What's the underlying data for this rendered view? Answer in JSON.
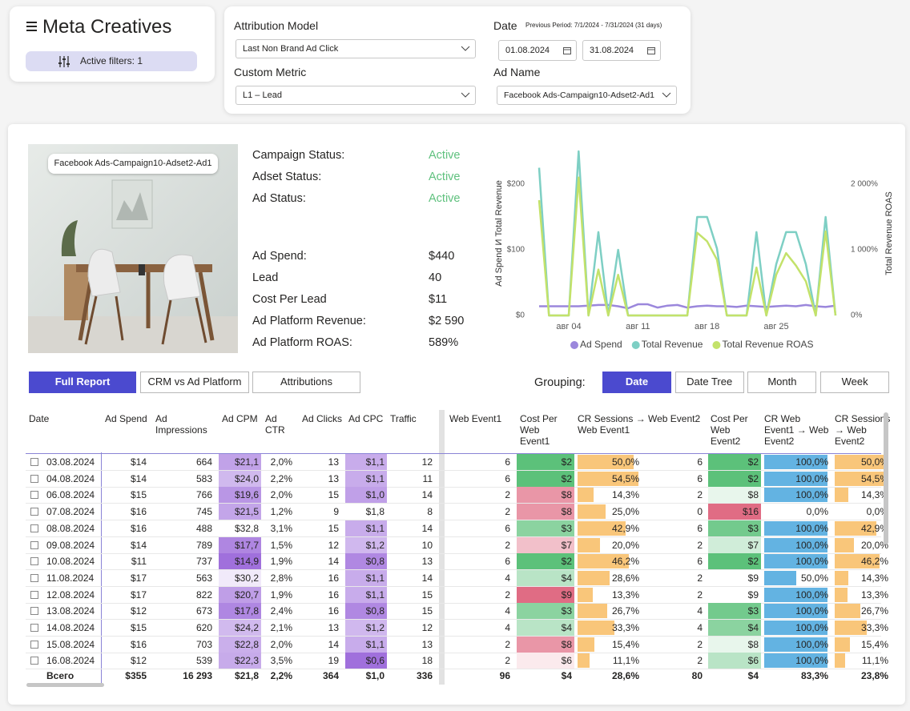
{
  "header": {
    "title": "Meta Creatives",
    "active_filters": "Active filters: 1"
  },
  "filters": {
    "attribution_model": {
      "label": "Attribution Model",
      "value": "Last Non Brand Ad Click"
    },
    "custom_metric": {
      "label": "Custom Metric",
      "value": "L1 – Lead"
    },
    "date": {
      "label": "Date",
      "previous_period": "Previous Period: 7/1/2024 - 7/31/2024 (31 days)",
      "start": "01.08.2024",
      "end": "31.08.2024"
    },
    "ad_name": {
      "label": "Ad Name",
      "value": "Facebook Ads-Campaign10-Adset2-Ad1"
    }
  },
  "ad": {
    "name": "Facebook Ads-Campaign10-Adset2-Ad1",
    "statuses": [
      {
        "label": "Campaign Status:",
        "value": "Active"
      },
      {
        "label": "Adset Status:",
        "value": "Active"
      },
      {
        "label": "Ad Status:",
        "value": "Active"
      }
    ],
    "metrics": [
      {
        "label": "Ad Spend:",
        "value": "$440"
      },
      {
        "label": "Lead",
        "value": "40"
      },
      {
        "label": "Cost Per Lead",
        "value": "$11"
      },
      {
        "label": "Ad Platform Revenue:",
        "value": "$2 590"
      },
      {
        "label": "Ad Platform ROAS:",
        "value": "589%"
      }
    ]
  },
  "chart_data": {
    "type": "line",
    "x": [
      1,
      2,
      3,
      4,
      5,
      6,
      7,
      8,
      9,
      10,
      11,
      12,
      13,
      14,
      15,
      16,
      17,
      18,
      19,
      20,
      21,
      22,
      23,
      24,
      25,
      26,
      27,
      28,
      29,
      30,
      31
    ],
    "xlim": [
      1,
      31
    ],
    "xticks": [
      {
        "value": 4,
        "label": "авг 04"
      },
      {
        "value": 11,
        "label": "авг 11"
      },
      {
        "value": 18,
        "label": "авг 18"
      },
      {
        "value": 25,
        "label": "авг 25"
      }
    ],
    "ylim": [
      0,
      250
    ],
    "yticks": [
      {
        "value": 0,
        "label": "$0"
      },
      {
        "value": 100,
        "label": "$100"
      },
      {
        "value": 200,
        "label": "$200"
      }
    ],
    "y2lim": [
      0,
      2500
    ],
    "y2ticks": [
      {
        "value": 0,
        "label": "0%"
      },
      {
        "value": 1000,
        "label": "1 000%"
      },
      {
        "value": 2000,
        "label": "2 000%"
      }
    ],
    "ylabel": "Ad Spend И Total Revenue",
    "y2label": "Total Revenue ROAS",
    "legend": "bottom",
    "series": [
      {
        "name": "Ad Spend",
        "color": "#9b87dc",
        "values": [
          14,
          14,
          14,
          14,
          14,
          15,
          16,
          16,
          14,
          11,
          17,
          17,
          12,
          15,
          16,
          12,
          14,
          15,
          14,
          14,
          13,
          15,
          14,
          13,
          14,
          15,
          14,
          16,
          14,
          13,
          15
        ]
      },
      {
        "name": "Total Revenue",
        "color": "#7ecfc4",
        "values": [
          225,
          0,
          0,
          0,
          250,
          0,
          127,
          0,
          100,
          0,
          0,
          0,
          0,
          0,
          0,
          0,
          150,
          150,
          102,
          0,
          0,
          0,
          127,
          0,
          78,
          127,
          127,
          78,
          0,
          150,
          0
        ]
      },
      {
        "name": "Total Revenue ROAS",
        "color": "#c3e26a",
        "axis": "y2",
        "values": [
          1756,
          0,
          0,
          0,
          2100,
          0,
          700,
          0,
          620,
          0,
          0,
          0,
          0,
          0,
          0,
          0,
          1260,
          1130,
          850,
          0,
          0,
          0,
          730,
          0,
          620,
          950,
          760,
          520,
          0,
          1280,
          0
        ]
      }
    ]
  },
  "report_tabs": [
    "Full Report",
    "CRM vs Ad Platform",
    "Attributions"
  ],
  "grouping": {
    "label": "Grouping:",
    "options": [
      "Date",
      "Date Tree",
      "Month",
      "Week"
    ]
  },
  "table": {
    "columns": [
      "Date",
      "Ad Spend",
      "Ad Impressions",
      "Ad CPM",
      "Ad CTR",
      "Ad Clicks",
      "Ad CPC",
      "Traffic",
      "Web Event1",
      "Cost Per Web Event1",
      "CR Sessions → Web Event1",
      "Web Event2",
      "Cost Per Web Event2",
      "CR Web Event1 → Web Event2",
      "CR Sessions → Web Event2"
    ],
    "rows": [
      [
        "03.08.2024",
        "$14",
        "664",
        "$21,1",
        "2,0%",
        "13",
        "$1,1",
        "12",
        "6",
        "$2",
        "50,0%",
        "6",
        "$2",
        "100,0%",
        "50,0%"
      ],
      [
        "04.08.2024",
        "$14",
        "583",
        "$24,0",
        "2,2%",
        "13",
        "$1,1",
        "11",
        "6",
        "$2",
        "54,5%",
        "6",
        "$2",
        "100,0%",
        "54,5%"
      ],
      [
        "06.08.2024",
        "$15",
        "766",
        "$19,6",
        "2,0%",
        "15",
        "$1,0",
        "14",
        "2",
        "$8",
        "14,3%",
        "2",
        "$8",
        "100,0%",
        "14,3%"
      ],
      [
        "07.08.2024",
        "$16",
        "745",
        "$21,5",
        "1,2%",
        "9",
        "$1,8",
        "8",
        "2",
        "$8",
        "25,0%",
        "0",
        "$16",
        "0,0%",
        "0,0%"
      ],
      [
        "08.08.2024",
        "$16",
        "488",
        "$32,8",
        "3,1%",
        "15",
        "$1,1",
        "14",
        "6",
        "$3",
        "42,9%",
        "6",
        "$3",
        "100,0%",
        "42,9%"
      ],
      [
        "09.08.2024",
        "$14",
        "789",
        "$17,7",
        "1,5%",
        "12",
        "$1,2",
        "10",
        "2",
        "$7",
        "20,0%",
        "2",
        "$7",
        "100,0%",
        "20,0%"
      ],
      [
        "10.08.2024",
        "$11",
        "737",
        "$14,9",
        "1,9%",
        "14",
        "$0,8",
        "13",
        "6",
        "$2",
        "46,2%",
        "6",
        "$2",
        "100,0%",
        "46,2%"
      ],
      [
        "11.08.2024",
        "$17",
        "563",
        "$30,2",
        "2,8%",
        "16",
        "$1,1",
        "14",
        "4",
        "$4",
        "28,6%",
        "2",
        "$9",
        "50,0%",
        "14,3%"
      ],
      [
        "12.08.2024",
        "$17",
        "822",
        "$20,7",
        "1,9%",
        "16",
        "$1,1",
        "15",
        "2",
        "$9",
        "13,3%",
        "2",
        "$9",
        "100,0%",
        "13,3%"
      ],
      [
        "13.08.2024",
        "$12",
        "673",
        "$17,8",
        "2,4%",
        "16",
        "$0,8",
        "15",
        "4",
        "$3",
        "26,7%",
        "4",
        "$3",
        "100,0%",
        "26,7%"
      ],
      [
        "14.08.2024",
        "$15",
        "620",
        "$24,2",
        "2,1%",
        "13",
        "$1,2",
        "12",
        "4",
        "$4",
        "33,3%",
        "4",
        "$4",
        "100,0%",
        "33,3%"
      ],
      [
        "15.08.2024",
        "$16",
        "703",
        "$22,8",
        "2,0%",
        "14",
        "$1,1",
        "13",
        "2",
        "$8",
        "15,4%",
        "2",
        "$8",
        "100,0%",
        "15,4%"
      ],
      [
        "16.08.2024",
        "$12",
        "539",
        "$22,3",
        "3,5%",
        "19",
        "$0,6",
        "18",
        "2",
        "$6",
        "11,1%",
        "2",
        "$6",
        "100,0%",
        "11,1%"
      ]
    ],
    "total": [
      "Всего",
      "$355",
      "16 293",
      "$21,8",
      "2,2%",
      "364",
      "$1,0",
      "336",
      "96",
      "$4",
      "28,6%",
      "80",
      "$4",
      "83,3%",
      "23,8%"
    ]
  }
}
